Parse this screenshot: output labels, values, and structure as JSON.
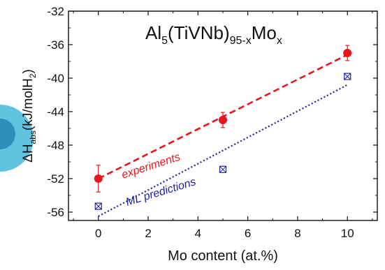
{
  "chart_data": {
    "type": "scatter",
    "title": {
      "prefix": "Al",
      "sub1": "5",
      "mid": "(TiVNb)",
      "sub2": "95-x",
      "suffix": "Mo",
      "sub3": "x"
    },
    "xlabel": "Mo content (at.%)",
    "ylabel": {
      "prefix": "ΔH",
      "sub1": "abs",
      "mid": "(kJ/molH",
      "sub2": "2",
      "suffix": ")"
    },
    "xlim": [
      -1.2,
      11.2
    ],
    "ylim": [
      -57,
      -32
    ],
    "xticks": [
      0,
      2,
      4,
      6,
      8,
      10
    ],
    "yticks": [
      -32,
      -36,
      -40,
      -44,
      -48,
      -52,
      -56
    ],
    "grid": false,
    "series": [
      {
        "name": "experiments",
        "marker": "filled-circle",
        "color": "#e8161b",
        "x": [
          0,
          5,
          10
        ],
        "y": [
          -52,
          -45,
          -37
        ],
        "yerr": [
          1.6,
          0.9,
          0.9
        ],
        "fit": {
          "x": [
            0,
            10
          ],
          "y": [
            -52,
            -37.2
          ],
          "style": "dashed"
        }
      },
      {
        "name": "ML predictions",
        "marker": "boxed-cross",
        "color": "#1f22a6",
        "x": [
          0,
          5,
          10
        ],
        "y": [
          -55.3,
          -50.9,
          -39.8
        ],
        "fit": {
          "x": [
            0,
            10
          ],
          "y": [
            -56.5,
            -40.8
          ],
          "style": "dotted"
        }
      }
    ]
  }
}
